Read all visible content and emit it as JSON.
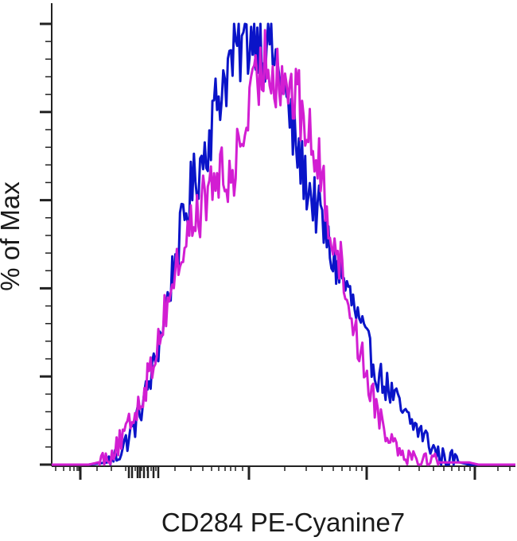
{
  "chart_data": {
    "type": "line",
    "title": "",
    "xlabel": "CD284 PE-Cyanine7",
    "ylabel": "% of Max",
    "x_scale": "biexponential",
    "x_tick_labels": [],
    "y_tick_labels": [],
    "ylim": [
      0,
      100
    ],
    "grid": false,
    "legend": "none",
    "series": [
      {
        "color": "#0a14c8",
        "x": [
          0,
          8,
          12,
          14,
          16,
          18,
          20,
          22,
          24,
          26,
          28,
          30,
          32,
          34,
          36,
          38,
          40,
          42,
          44,
          46,
          47,
          48,
          50,
          52,
          54,
          56,
          58,
          60,
          62,
          64,
          66,
          68,
          70,
          72,
          74,
          76,
          78,
          80,
          82,
          84,
          86,
          88,
          90,
          100
        ],
        "y": [
          0,
          0,
          0.5,
          2,
          5,
          9,
          15,
          22,
          32,
          43,
          53,
          62,
          68,
          75,
          84,
          90,
          94,
          96,
          99,
          95,
          98,
          92,
          85,
          75,
          67,
          61,
          56,
          48,
          44,
          39,
          33,
          27,
          21,
          18,
          15,
          11,
          9,
          7,
          4,
          1.5,
          1,
          0.5,
          0,
          0
        ]
      },
      {
        "color": "#d21ed2",
        "x": [
          0,
          8,
          10,
          12,
          14,
          16,
          18,
          20,
          22,
          24,
          26,
          28,
          30,
          32,
          34,
          36,
          38,
          40,
          42,
          44,
          45,
          46,
          48,
          50,
          52,
          54,
          56,
          58,
          60,
          62,
          64,
          66,
          68,
          70,
          72,
          74,
          76,
          78,
          80,
          82,
          84,
          86,
          88,
          90,
          92,
          94,
          100
        ],
        "y": [
          0,
          0,
          0.5,
          2,
          4,
          7,
          12,
          17,
          24,
          33,
          41,
          48,
          54,
          58,
          62,
          66,
          63,
          70,
          78,
          85,
          89,
          92,
          90,
          88,
          84,
          80,
          73,
          66,
          55,
          47,
          37,
          28,
          20,
          13,
          8,
          5,
          3,
          2,
          1,
          1,
          0.5,
          0.5,
          0.5,
          0.5,
          0,
          0,
          0
        ]
      }
    ]
  }
}
